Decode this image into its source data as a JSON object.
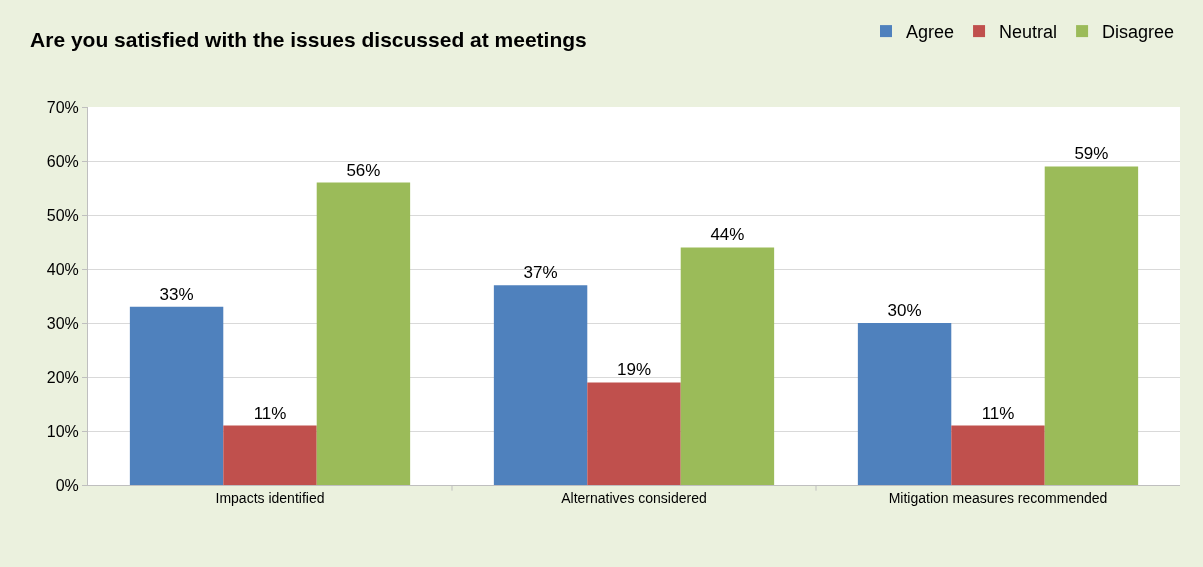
{
  "chart_data": {
    "type": "bar",
    "title": "Are you satisfied with the issues discussed at meetings",
    "categories": [
      "Impacts identified",
      "Alternatives considered",
      "Mitigation measures recommended"
    ],
    "series": [
      {
        "name": "Agree",
        "color": "#4f81bd",
        "values": [
          33,
          37,
          30
        ],
        "value_labels": [
          "33%",
          "37%",
          "30%"
        ]
      },
      {
        "name": "Neutral",
        "color": "#c0504d",
        "values": [
          11,
          19,
          11
        ],
        "value_labels": [
          "11%",
          "19%",
          "11%"
        ]
      },
      {
        "name": "Disagree",
        "color": "#9bbb59",
        "values": [
          56,
          44,
          59
        ],
        "value_labels": [
          "56%",
          "44%",
          "59%"
        ]
      }
    ],
    "ylim": [
      0,
      70
    ],
    "yticks": [
      {
        "value": 0,
        "label": "0%"
      },
      {
        "value": 10,
        "label": "10%"
      },
      {
        "value": 20,
        "label": "20%"
      },
      {
        "value": 30,
        "label": "30%"
      },
      {
        "value": 40,
        "label": "40%"
      },
      {
        "value": 50,
        "label": "50%"
      },
      {
        "value": 60,
        "label": "60%"
      },
      {
        "value": 70,
        "label": "70%"
      }
    ],
    "grid": "y",
    "legend": "top right"
  }
}
